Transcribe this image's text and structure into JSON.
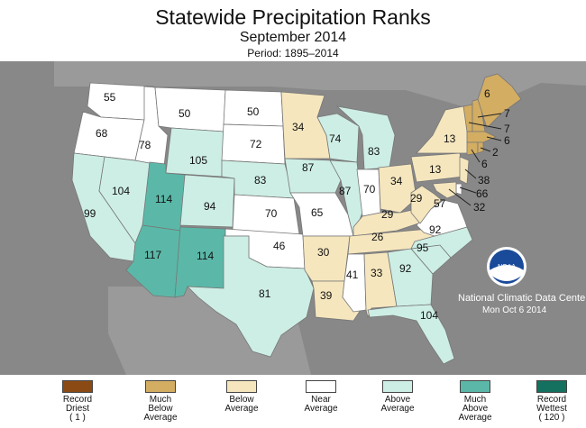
{
  "header": {
    "title": "Statewide Precipitation Ranks",
    "subtitle": "September 2014",
    "period": "Period: 1895–2014"
  },
  "colors": {
    "record_driest": "#8B4A14",
    "much_below": "#D3AD62",
    "below": "#F5E6BE",
    "near": "#FFFFFF",
    "above": "#CDEEE5",
    "much_above": "#5BB8A8",
    "record_wettest": "#14705F",
    "background": "#888888"
  },
  "legend": [
    {
      "label": "Record\nDriest\n( 1 )",
      "category": "record_driest"
    },
    {
      "label": "Much\nBelow\nAverage",
      "category": "much_below"
    },
    {
      "label": "Below\nAverage",
      "category": "below"
    },
    {
      "label": "Near\nAverage",
      "category": "near"
    },
    {
      "label": "Above\nAverage",
      "category": "above"
    },
    {
      "label": "Much\nAbove\nAverage",
      "category": "much_above"
    },
    {
      "label": "Record\nWettest\n( 120 )",
      "category": "record_wettest"
    }
  ],
  "states": [
    {
      "state": "WA",
      "rank": "55",
      "category": "near"
    },
    {
      "state": "OR",
      "rank": "68",
      "category": "near"
    },
    {
      "state": "CA",
      "rank": "99",
      "category": "above"
    },
    {
      "state": "ID",
      "rank": "78",
      "category": "near"
    },
    {
      "state": "NV",
      "rank": "104",
      "category": "above"
    },
    {
      "state": "MT",
      "rank": "50",
      "category": "near"
    },
    {
      "state": "WY",
      "rank": "105",
      "category": "above"
    },
    {
      "state": "UT",
      "rank": "114",
      "category": "much_above"
    },
    {
      "state": "AZ",
      "rank": "117",
      "category": "much_above"
    },
    {
      "state": "CO",
      "rank": "94",
      "category": "above"
    },
    {
      "state": "NM",
      "rank": "114",
      "category": "much_above"
    },
    {
      "state": "ND",
      "rank": "50",
      "category": "near"
    },
    {
      "state": "SD",
      "rank": "72",
      "category": "near"
    },
    {
      "state": "NE",
      "rank": "83",
      "category": "above"
    },
    {
      "state": "KS",
      "rank": "70",
      "category": "near"
    },
    {
      "state": "OK",
      "rank": "46",
      "category": "near"
    },
    {
      "state": "TX",
      "rank": "81",
      "category": "above"
    },
    {
      "state": "MN",
      "rank": "34",
      "category": "below"
    },
    {
      "state": "IA",
      "rank": "87",
      "category": "above"
    },
    {
      "state": "MO",
      "rank": "65",
      "category": "near"
    },
    {
      "state": "AR",
      "rank": "30",
      "category": "below"
    },
    {
      "state": "LA",
      "rank": "39",
      "category": "below"
    },
    {
      "state": "WI",
      "rank": "74",
      "category": "above"
    },
    {
      "state": "IL",
      "rank": "87",
      "category": "above"
    },
    {
      "state": "MI",
      "rank": "83",
      "category": "above"
    },
    {
      "state": "IN",
      "rank": "70",
      "category": "near"
    },
    {
      "state": "OH",
      "rank": "34",
      "category": "below"
    },
    {
      "state": "KY",
      "rank": "29",
      "category": "below"
    },
    {
      "state": "TN",
      "rank": "26",
      "category": "below"
    },
    {
      "state": "MS",
      "rank": "41",
      "category": "near"
    },
    {
      "state": "AL",
      "rank": "33",
      "category": "below"
    },
    {
      "state": "GA",
      "rank": "92",
      "category": "above"
    },
    {
      "state": "FL",
      "rank": "104",
      "category": "above"
    },
    {
      "state": "SC",
      "rank": "95",
      "category": "above"
    },
    {
      "state": "NC",
      "rank": "92",
      "category": "above"
    },
    {
      "state": "VA",
      "rank": "57",
      "category": "near"
    },
    {
      "state": "WV",
      "rank": "29",
      "category": "below"
    },
    {
      "state": "PA",
      "rank": "13",
      "category": "below"
    },
    {
      "state": "NY",
      "rank": "13",
      "category": "below"
    },
    {
      "state": "ME",
      "rank": "6",
      "category": "much_below"
    },
    {
      "state": "NH",
      "rank": "7",
      "category": "much_below"
    },
    {
      "state": "VT",
      "rank": "7",
      "category": "much_below"
    },
    {
      "state": "MA",
      "rank": "6",
      "category": "much_below"
    },
    {
      "state": "RI",
      "rank": "2",
      "category": "much_below"
    },
    {
      "state": "CT",
      "rank": "6",
      "category": "much_below"
    },
    {
      "state": "NJ",
      "rank": "38",
      "category": "below"
    },
    {
      "state": "DE",
      "rank": "66",
      "category": "near"
    },
    {
      "state": "MD",
      "rank": "32",
      "category": "below"
    }
  ],
  "credit": {
    "org": "National Climatic Data Center",
    "date": "Mon Oct  6 2014",
    "logo_text": "NOAA"
  }
}
